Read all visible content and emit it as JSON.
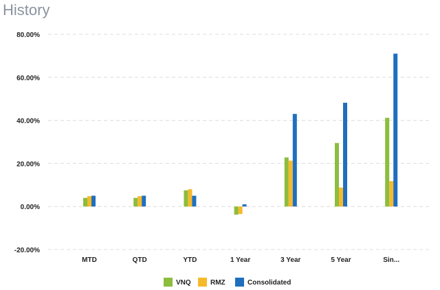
{
  "page": {
    "title": "History"
  },
  "chart_data": {
    "type": "bar",
    "title": "",
    "xlabel": "",
    "ylabel": "",
    "categories": [
      "MTD",
      "QTD",
      "YTD",
      "1 Year",
      "3 Year",
      "5 Year",
      "Sin..."
    ],
    "series": [
      {
        "name": "VNQ",
        "color": "#8cbd3f",
        "values": [
          4.0,
          4.0,
          7.5,
          -3.8,
          22.8,
          29.5,
          41.2
        ]
      },
      {
        "name": "RMZ",
        "color": "#f6b92b",
        "values": [
          4.8,
          4.8,
          8.0,
          -3.5,
          21.3,
          8.8,
          11.8
        ]
      },
      {
        "name": "Consolidated",
        "color": "#1f6fbe",
        "values": [
          5.0,
          5.0,
          5.0,
          1.0,
          43.0,
          48.2,
          71.0
        ]
      }
    ],
    "ylim": [
      -20,
      80
    ],
    "yticks": [
      {
        "value": 80,
        "label": "80.00%"
      },
      {
        "value": 60,
        "label": "60.00%"
      },
      {
        "value": 40,
        "label": "40.00%"
      },
      {
        "value": 20,
        "label": "20.00%"
      },
      {
        "value": 0,
        "label": "0.00%"
      },
      {
        "value": -20,
        "label": "-20.00%"
      }
    ],
    "grid": true,
    "legend_position": "bottom"
  }
}
